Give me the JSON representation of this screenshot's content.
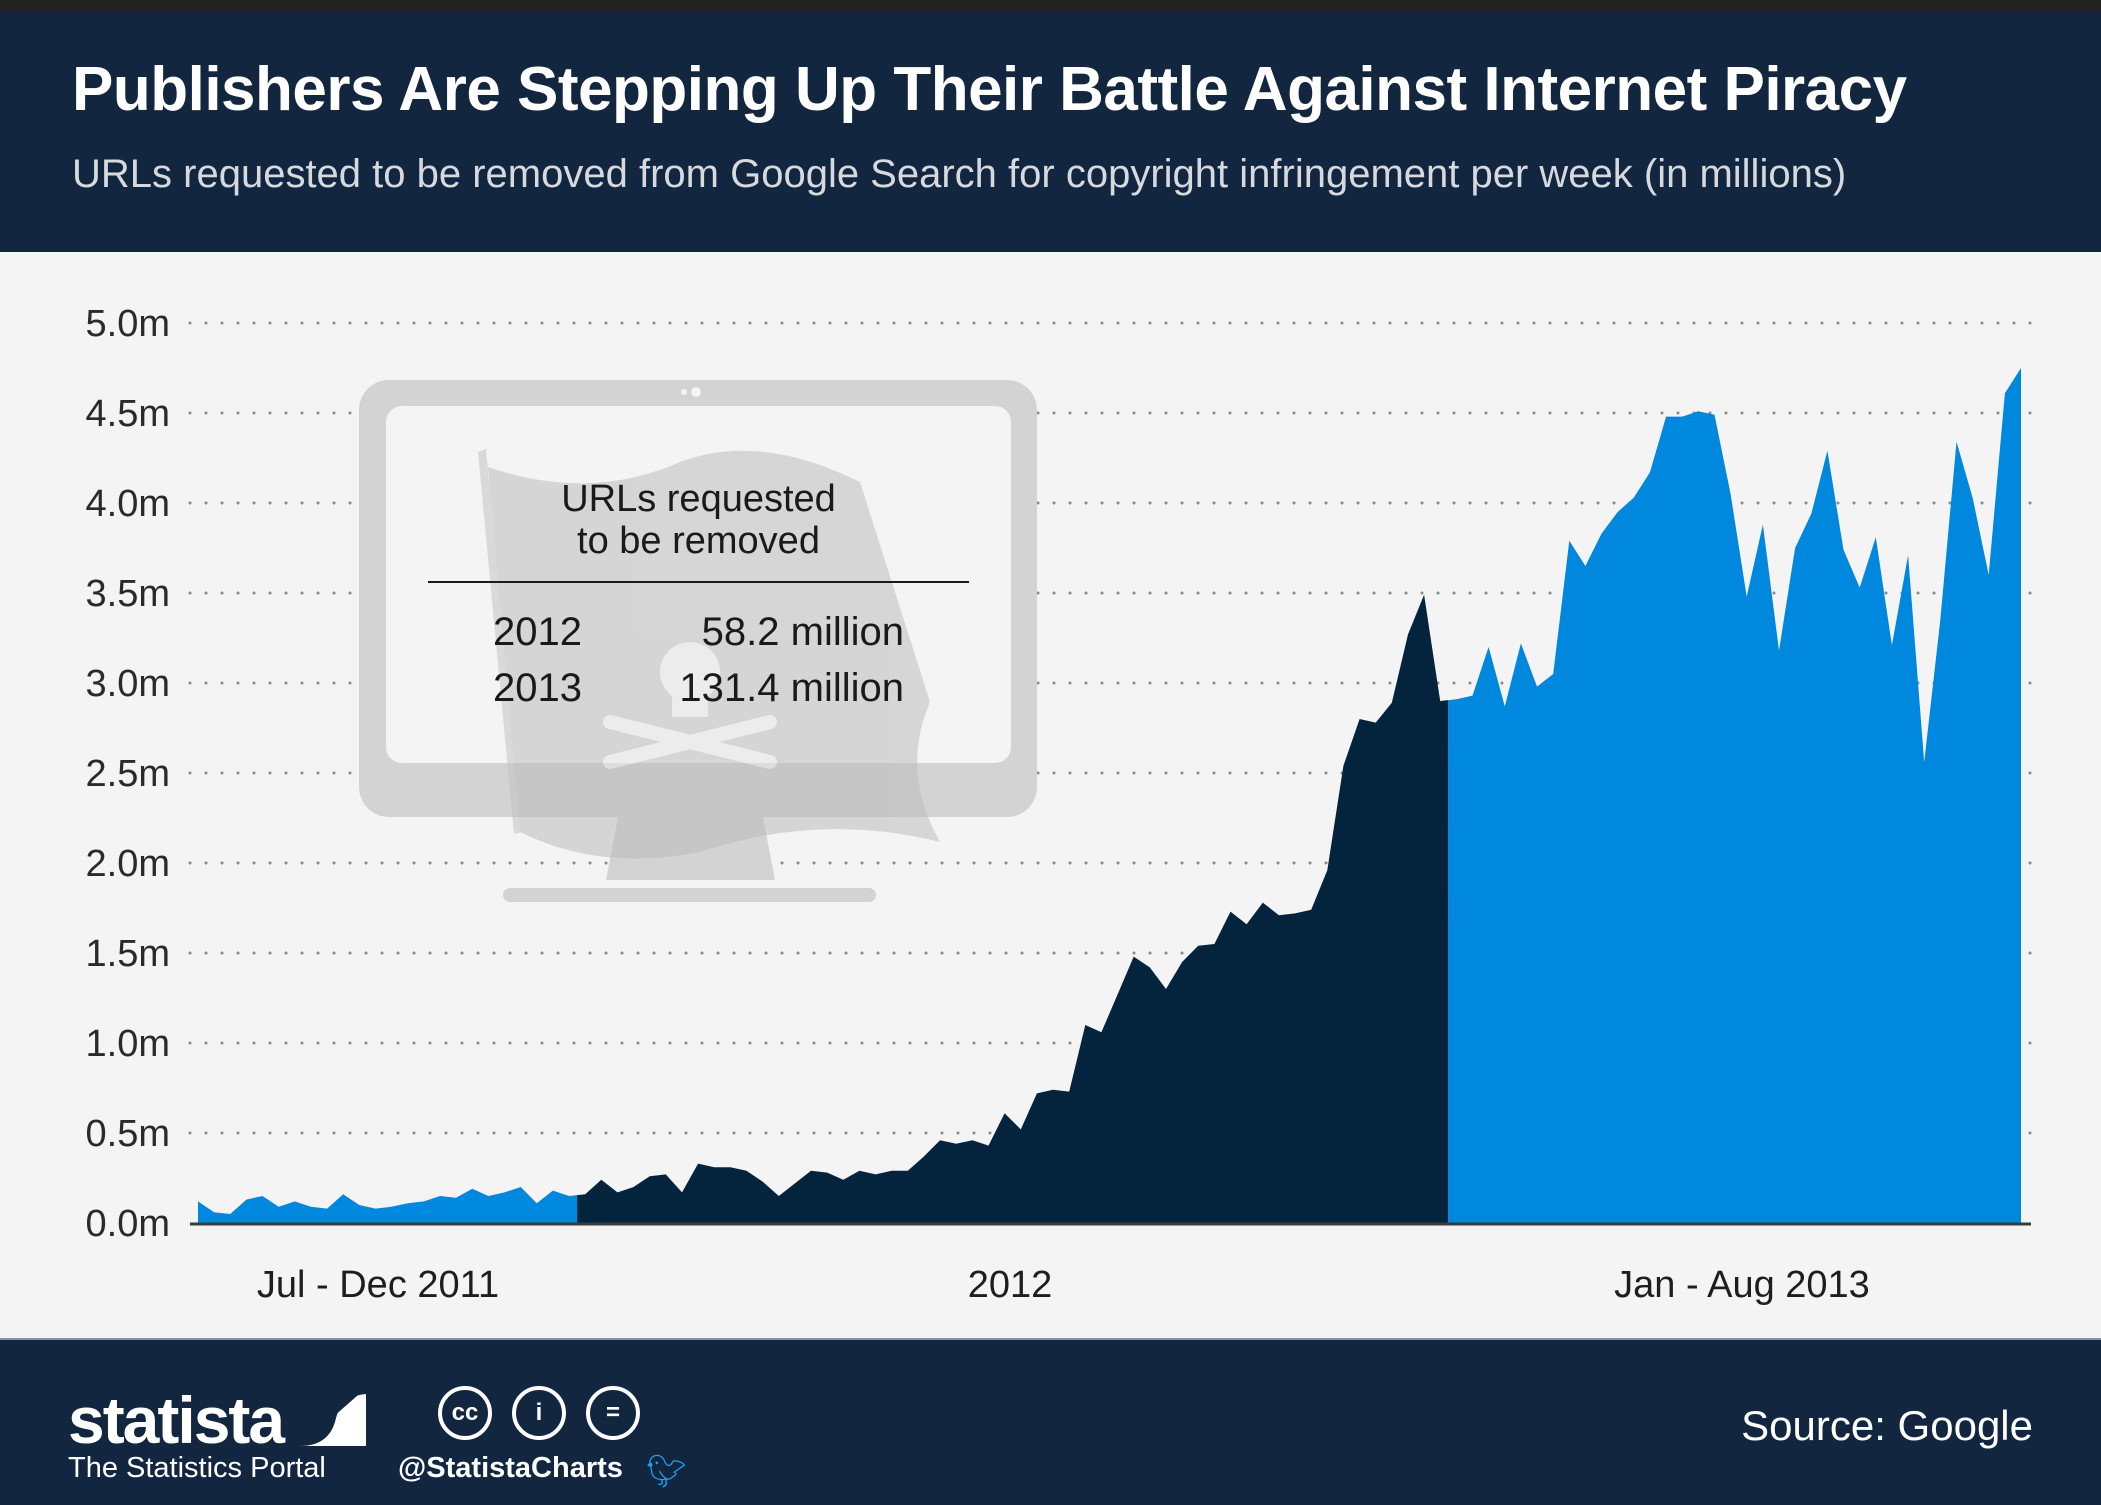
{
  "header": {
    "title": "Publishers Are Stepping Up Their Battle Against Internet Piracy",
    "subtitle": "URLs requested to be removed from Google Search for copyright infringement per week (in millions)"
  },
  "callout": {
    "title_line1": "URLs requested",
    "title_line2": "to be removed",
    "rows": [
      {
        "year": "2012",
        "value": "58.2 million"
      },
      {
        "year": "2013",
        "value": "131.4 million"
      }
    ],
    "icon": "monitor-pirate-flag-icon"
  },
  "footer": {
    "logo": "statista",
    "tagline": "The Statistics Portal",
    "license_icons": [
      "cc",
      "i",
      "="
    ],
    "handle": "@StatistaCharts",
    "source": "Source: Google"
  },
  "colors": {
    "header_bg": "#12263f",
    "series_2011": "#0087de",
    "series_2012": "#04243d",
    "series_2013": "#0087de",
    "plot_bg": "#f4f4f4"
  },
  "chart_data": {
    "type": "area",
    "title": "Publishers Are Stepping Up Their Battle Against Internet Piracy",
    "subtitle": "URLs requested to be removed from Google Search for copyright infringement per week (in millions)",
    "xlabel": "",
    "ylabel": "",
    "ylim": [
      0,
      5.0
    ],
    "yticks": [
      "0.0m",
      "0.5m",
      "1.0m",
      "1.5m",
      "2.0m",
      "2.5m",
      "3.0m",
      "3.5m",
      "4.0m",
      "4.5m",
      "5.0m"
    ],
    "ytick_values": [
      0,
      0.5,
      1.0,
      1.5,
      2.0,
      2.5,
      3.0,
      3.5,
      4.0,
      4.5,
      5.0
    ],
    "grid": true,
    "categories": [
      "Jul - Dec 2011",
      "2012",
      "Jan - Aug 2013"
    ],
    "series": [
      {
        "name": "Jul - Dec 2011",
        "color": "#0087de",
        "values": [
          0.12,
          0.06,
          0.05,
          0.13,
          0.15,
          0.09,
          0.12,
          0.09,
          0.08,
          0.16,
          0.1,
          0.08,
          0.09,
          0.11,
          0.12,
          0.15,
          0.14,
          0.19,
          0.15,
          0.17,
          0.2,
          0.11,
          0.18,
          0.15
        ]
      },
      {
        "name": "2012",
        "color": "#04243d",
        "values": [
          0.16,
          0.24,
          0.17,
          0.2,
          0.26,
          0.27,
          0.17,
          0.33,
          0.31,
          0.31,
          0.29,
          0.23,
          0.15,
          0.22,
          0.29,
          0.28,
          0.24,
          0.29,
          0.27,
          0.29,
          0.29,
          0.37,
          0.46,
          0.44,
          0.46,
          0.43,
          0.61,
          0.52,
          0.72,
          0.74,
          0.73,
          1.1,
          1.06,
          1.27,
          1.48,
          1.42,
          1.3,
          1.45,
          1.54,
          1.55,
          1.73,
          1.66,
          1.78,
          1.71,
          1.72,
          1.74,
          1.96,
          2.54,
          2.8,
          2.78,
          2.89,
          3.27,
          3.49,
          2.9
        ]
      },
      {
        "name": "Jan - Aug 2013",
        "color": "#0087de",
        "values": [
          2.91,
          2.93,
          3.2,
          2.87,
          3.22,
          2.98,
          3.05,
          3.79,
          3.65,
          3.83,
          3.95,
          4.03,
          4.17,
          4.48,
          4.48,
          4.51,
          4.49,
          4.05,
          3.48,
          3.88,
          3.18,
          3.75,
          3.94,
          4.29,
          3.74,
          3.53,
          3.81,
          3.21,
          3.71,
          2.56,
          3.35,
          4.34,
          4.03,
          3.6,
          4.61,
          4.75
        ]
      }
    ],
    "legend": "none"
  }
}
